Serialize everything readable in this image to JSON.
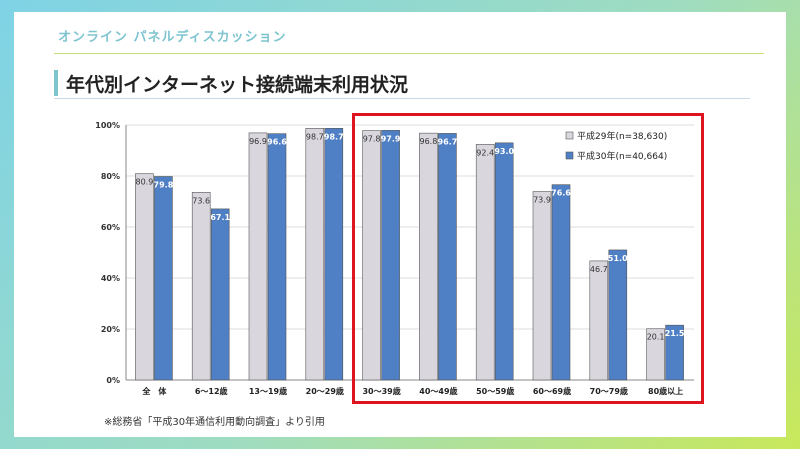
{
  "header": {
    "label": "オンライン パネルディスカッション",
    "title": "年代別インターネット接続端末利用状況"
  },
  "footnote": "※総務省「平成30年通信利用動向調査」より引用",
  "colors": {
    "series1": "#d9d6de",
    "series2": "#4f7fc4",
    "highlight": "#e0141e",
    "accent": "#7ec4cf"
  },
  "chart_data": {
    "type": "bar",
    "categories": [
      "全　体",
      "6～12歳",
      "13～19歳",
      "20～29歳",
      "30～39歳",
      "40～49歳",
      "50～59歳",
      "60～69歳",
      "70～79歳",
      "80歳以上"
    ],
    "series": [
      {
        "name": "平成29年(n=38,630)",
        "values": [
          80.9,
          73.6,
          96.9,
          98.7,
          97.8,
          96.8,
          92.4,
          73.9,
          46.7,
          20.1
        ]
      },
      {
        "name": "平成30年(n=40,664)",
        "values": [
          79.8,
          67.1,
          96.6,
          98.7,
          97.9,
          96.7,
          93.0,
          76.6,
          51.0,
          21.5
        ]
      }
    ],
    "yticks": [
      "0%",
      "20%",
      "40%",
      "60%",
      "80%",
      "100%"
    ],
    "ylim": [
      0,
      100
    ],
    "legend_position": "top-right",
    "highlighted_categories": [
      "30～39歳",
      "40～49歳",
      "50～59歳",
      "60～69歳",
      "70～79歳",
      "80歳以上"
    ]
  }
}
